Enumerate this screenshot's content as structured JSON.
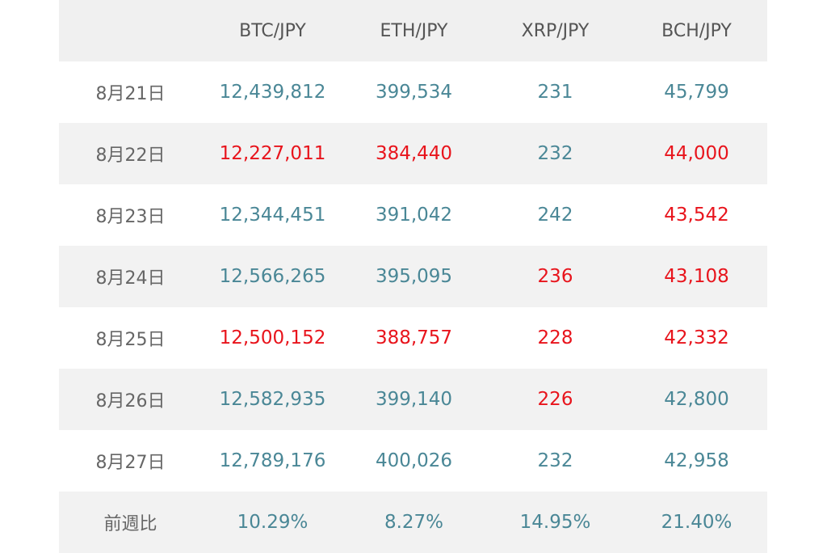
{
  "table": {
    "header": [
      "BTC/JPY",
      "ETH/JPY",
      "XRP/JPY",
      "BCH/JPY"
    ],
    "rows": [
      {
        "label": "8月21日",
        "cells": [
          "12,439,812",
          "399,534",
          "231",
          "45,799"
        ],
        "colors": [
          "#4a8796",
          "#4a8796",
          "#4a8796",
          "#4a8796"
        ]
      },
      {
        "label": "8月22日",
        "cells": [
          "12,227,011",
          "384,440",
          "232",
          "44,000"
        ],
        "colors": [
          "#e8141c",
          "#e8141c",
          "#4a8796",
          "#e8141c"
        ]
      },
      {
        "label": "8月23日",
        "cells": [
          "12,344,451",
          "391,042",
          "242",
          "43,542"
        ],
        "colors": [
          "#4a8796",
          "#4a8796",
          "#4a8796",
          "#e8141c"
        ]
      },
      {
        "label": "8月24日",
        "cells": [
          "12,566,265",
          "395,095",
          "236",
          "43,108"
        ],
        "colors": [
          "#4a8796",
          "#4a8796",
          "#e8141c",
          "#e8141c"
        ]
      },
      {
        "label": "8月25日",
        "cells": [
          "12,500,152",
          "388,757",
          "228",
          "42,332"
        ],
        "colors": [
          "#e8141c",
          "#e8141c",
          "#e8141c",
          "#e8141c"
        ]
      },
      {
        "label": "8月26日",
        "cells": [
          "12,582,935",
          "399,140",
          "226",
          "42,800"
        ],
        "colors": [
          "#4a8796",
          "#4a8796",
          "#e8141c",
          "#4a8796"
        ]
      },
      {
        "label": "8月27日",
        "cells": [
          "12,789,176",
          "400,026",
          "232",
          "42,958"
        ],
        "colors": [
          "#4a8796",
          "#4a8796",
          "#4a8796",
          "#4a8796"
        ]
      }
    ],
    "footer": {
      "label": "前週比",
      "cells": [
        "10.29%",
        "8.27%",
        "14.95%",
        "21.40%"
      ],
      "colors": [
        "#4a8796",
        "#4a8796",
        "#4a8796",
        "#4a8796"
      ]
    }
  }
}
